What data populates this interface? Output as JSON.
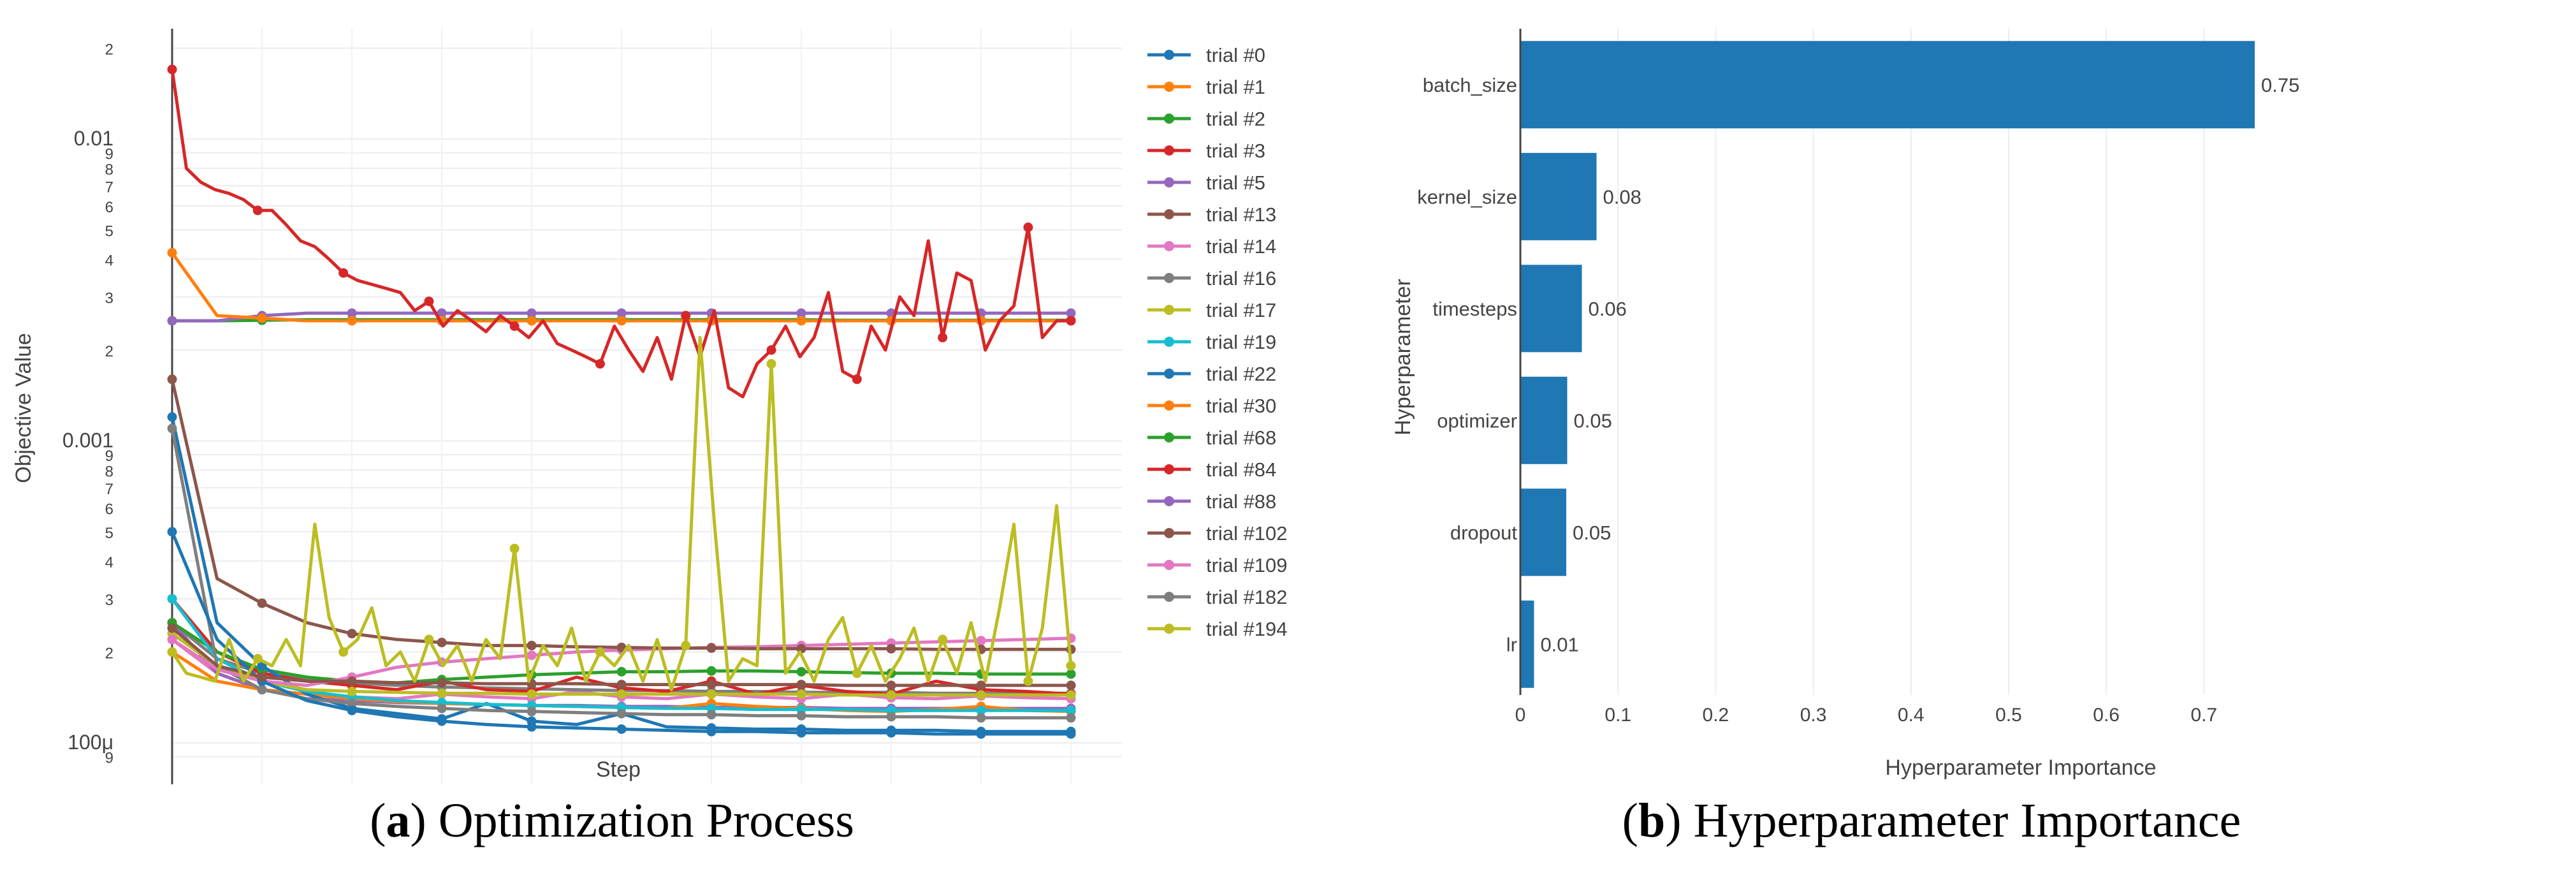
{
  "captions": {
    "a_letter": "a",
    "a_text": " Optimization Process",
    "b_letter": "b",
    "b_text": " Hyperparameter Importance"
  },
  "chart_data": [
    {
      "type": "line",
      "panel": "a",
      "title": "",
      "xlabel": "Step",
      "ylabel": "Objective Value",
      "yscale": "log",
      "ylim": [
        9e-05,
        0.022
      ],
      "xlim": [
        0,
        100
      ],
      "y_tick_labels": [
        {
          "v": 0.02,
          "t": "2"
        },
        {
          "v": 0.01,
          "t": "0.01"
        },
        {
          "v": 0.009,
          "t": "9"
        },
        {
          "v": 0.008,
          "t": "8"
        },
        {
          "v": 0.007,
          "t": "7"
        },
        {
          "v": 0.006,
          "t": "6"
        },
        {
          "v": 0.005,
          "t": "5"
        },
        {
          "v": 0.004,
          "t": "4"
        },
        {
          "v": 0.003,
          "t": "3"
        },
        {
          "v": 0.002,
          "t": "2"
        },
        {
          "v": 0.001,
          "t": "0.001"
        },
        {
          "v": 0.0009,
          "t": "9"
        },
        {
          "v": 0.0008,
          "t": "8"
        },
        {
          "v": 0.0007,
          "t": "7"
        },
        {
          "v": 0.0006,
          "t": "6"
        },
        {
          "v": 0.0005,
          "t": "5"
        },
        {
          "v": 0.0004,
          "t": "4"
        },
        {
          "v": 0.0003,
          "t": "3"
        },
        {
          "v": 0.0002,
          "t": "2"
        },
        {
          "v": 0.0001,
          "t": "100μ"
        },
        {
          "v": 9e-05,
          "t": "9"
        }
      ],
      "series": [
        {
          "name": "trial #0",
          "color": "#1f77b4",
          "values": [
            0.0005,
            0.00022,
            0.00016,
            0.000138,
            0.000128,
            0.000122,
            0.000118,
            0.000115,
            0.000113,
            0.000112,
            0.000111,
            0.00011,
            0.000109,
            0.000109,
            0.000108,
            0.000108,
            0.000108,
            0.000107,
            0.000107,
            0.000107,
            0.000107
          ]
        },
        {
          "name": "trial #1",
          "color": "#ff7f0e",
          "values": [
            0.0042,
            0.0026,
            0.00255,
            0.0025,
            0.0025,
            0.0025,
            0.0025,
            0.0025,
            0.0025,
            0.0025,
            0.0025,
            0.0025,
            0.0025,
            0.0025,
            0.0025,
            0.0025,
            0.0025,
            0.0025,
            0.0025,
            0.0025,
            0.0025
          ]
        },
        {
          "name": "trial #2",
          "color": "#2ca02c",
          "values": [
            0.0025,
            0.0025,
            0.00251,
            0.00252,
            0.00252,
            0.00252,
            0.00252,
            0.00252,
            0.00252,
            0.00252,
            0.00252,
            0.00252,
            0.00252,
            0.00252,
            0.00252,
            0.00251,
            0.00251,
            0.00251,
            0.00251,
            0.00251,
            0.00251
          ]
        },
        {
          "name": "trial #3",
          "color": "#d62728",
          "values": [
            0.017,
            0.008,
            0.0072,
            0.0068,
            0.0066,
            0.0063,
            0.0058,
            0.0058,
            0.0052,
            0.0046,
            0.0044,
            0.004,
            0.0036,
            0.0034,
            0.0033,
            0.0032,
            0.0031,
            0.0027,
            0.0029,
            0.0024,
            0.0027,
            0.0025,
            0.0023,
            0.0026,
            0.0024,
            0.0022,
            0.0025,
            0.0021,
            0.002,
            0.0019,
            0.0018,
            0.0024,
            0.002,
            0.0017,
            0.0022,
            0.0016,
            0.0026,
            0.0019,
            0.0027,
            0.0015,
            0.0014,
            0.0018,
            0.002,
            0.0024,
            0.0019,
            0.0022,
            0.0031,
            0.0017,
            0.0016,
            0.0024,
            0.002,
            0.003,
            0.0026,
            0.0046,
            0.0022,
            0.0036,
            0.0034,
            0.002,
            0.0025,
            0.0028,
            0.0051,
            0.0022,
            0.0025,
            0.0025
          ]
        },
        {
          "name": "trial #5",
          "color": "#9467bd",
          "values": [
            0.0025,
            0.0025,
            0.0026,
            0.00265,
            0.00265,
            0.00265,
            0.00265,
            0.00265,
            0.00265,
            0.00265,
            0.00265,
            0.00265,
            0.00265,
            0.00265,
            0.00265,
            0.00265,
            0.00265,
            0.00265,
            0.00265,
            0.00265,
            0.00265
          ]
        },
        {
          "name": "trial #13",
          "color": "#8c564b",
          "values": [
            0.0016,
            0.00035,
            0.00029,
            0.00025,
            0.00023,
            0.00022,
            0.000215,
            0.00021,
            0.00021,
            0.000208,
            0.000207,
            0.000206,
            0.000206,
            0.000205,
            0.000205,
            0.000205,
            0.000205,
            0.000204,
            0.000204,
            0.000204,
            0.000204
          ]
        },
        {
          "name": "trial #14",
          "color": "#e377c2",
          "values": [
            0.00022,
            0.000175,
            0.00016,
            0.000155,
            0.000165,
            0.000178,
            0.000185,
            0.00019,
            0.000195,
            0.0002,
            0.000203,
            0.000205,
            0.000207,
            0.000208,
            0.00021,
            0.000212,
            0.000214,
            0.000216,
            0.000218,
            0.00022,
            0.000222
          ]
        },
        {
          "name": "trial #16",
          "color": "#7f7f7f",
          "values": [
            0.0011,
            0.00018,
            0.00015,
            0.00014,
            0.000135,
            0.000132,
            0.00013,
            0.000128,
            0.000127,
            0.000126,
            0.000125,
            0.000124,
            0.000124,
            0.000123,
            0.000123,
            0.000122,
            0.000122,
            0.000122,
            0.000121,
            0.000121,
            0.000121
          ]
        },
        {
          "name": "trial #17",
          "color": "#bcbd22",
          "values": [
            0.00023,
            0.00018,
            0.00016,
            0.00015,
            0.000148,
            0.000147,
            0.000146,
            0.000146,
            0.000145,
            0.000145,
            0.000145,
            0.000145,
            0.000145,
            0.000145,
            0.000145,
            0.000144,
            0.000144,
            0.000144,
            0.000144,
            0.000144,
            0.000144
          ]
        },
        {
          "name": "trial #19",
          "color": "#17becf",
          "values": [
            0.0003,
            0.00019,
            0.00016,
            0.000148,
            0.000142,
            0.000138,
            0.000136,
            0.000134,
            0.000133,
            0.000132,
            0.000131,
            0.00013,
            0.00013,
            0.000129,
            0.000129,
            0.000129,
            0.000128,
            0.000128,
            0.000128,
            0.000128,
            0.000128
          ]
        },
        {
          "name": "trial #22",
          "color": "#1f77b4",
          "values": [
            0.0012,
            0.00025,
            0.00018,
            0.000145,
            0.00013,
            0.000125,
            0.00012,
            0.000135,
            0.000118,
            0.000115,
            0.000125,
            0.000113,
            0.000112,
            0.000111,
            0.000111,
            0.00011,
            0.00011,
            0.00011,
            0.000109,
            0.000109,
            0.000109
          ]
        },
        {
          "name": "trial #30",
          "color": "#ff7f0e",
          "values": [
            0.0002,
            0.00016,
            0.00015,
            0.000145,
            0.00014,
            0.000137,
            0.000135,
            0.000134,
            0.000133,
            0.000132,
            0.000131,
            0.00013,
            0.000135,
            0.000132,
            0.00013,
            0.000128,
            0.000127,
            0.000129,
            0.000132,
            0.000128,
            0.000127
          ]
        },
        {
          "name": "trial #68",
          "color": "#2ca02c",
          "values": [
            0.00025,
            0.0002,
            0.000175,
            0.000165,
            0.00016,
            0.000158,
            0.000162,
            0.000165,
            0.000168,
            0.00017,
            0.000172,
            0.000172,
            0.000173,
            0.000173,
            0.000172,
            0.000171,
            0.00017,
            0.00017,
            0.000169,
            0.000169,
            0.000169
          ]
        },
        {
          "name": "trial #84",
          "color": "#d62728",
          "values": [
            0.0003,
            0.0002,
            0.00017,
            0.00016,
            0.000155,
            0.00015,
            0.00016,
            0.00015,
            0.000148,
            0.000165,
            0.000152,
            0.000148,
            0.00016,
            0.000145,
            0.000155,
            0.000148,
            0.000145,
            0.00016,
            0.00015,
            0.000148,
            0.000145
          ]
        },
        {
          "name": "trial #88",
          "color": "#9467bd",
          "values": [
            0.00025,
            0.00017,
            0.00015,
            0.00014,
            0.000138,
            0.000136,
            0.000135,
            0.000134,
            0.000133,
            0.000133,
            0.000132,
            0.000132,
            0.000131,
            0.000131,
            0.000131,
            0.00013,
            0.00013,
            0.00013,
            0.00013,
            0.00013,
            0.00013
          ]
        },
        {
          "name": "trial #102",
          "color": "#8c564b",
          "values": [
            0.00024,
            0.00018,
            0.000165,
            0.00016,
            0.00016,
            0.000158,
            0.000158,
            0.000157,
            0.000157,
            0.000157,
            0.000156,
            0.000156,
            0.000156,
            0.000156,
            0.000156,
            0.000155,
            0.000155,
            0.000155,
            0.000155,
            0.000155,
            0.000155
          ]
        },
        {
          "name": "trial #109",
          "color": "#e377c2",
          "values": [
            0.00022,
            0.00017,
            0.00015,
            0.000145,
            0.000142,
            0.00014,
            0.000145,
            0.000142,
            0.00014,
            0.000148,
            0.000142,
            0.00014,
            0.000145,
            0.000142,
            0.00014,
            0.000145,
            0.000141,
            0.00014,
            0.000143,
            0.000141,
            0.00014
          ]
        },
        {
          "name": "trial #182",
          "color": "#7f7f7f",
          "values": [
            0.00025,
            0.00019,
            0.00017,
            0.000162,
            0.000158,
            0.000155,
            0.000153,
            0.000152,
            0.000151,
            0.00015,
            0.000149,
            0.000149,
            0.000148,
            0.000148,
            0.000147,
            0.000147,
            0.000147,
            0.000146,
            0.000146,
            0.000146,
            0.000146
          ]
        },
        {
          "name": "trial #194",
          "color": "#bcbd22",
          "values": [
            0.0002,
            0.00017,
            0.000165,
            0.00016,
            0.00022,
            0.00016,
            0.00019,
            0.00018,
            0.00022,
            0.00018,
            0.00053,
            0.00026,
            0.0002,
            0.00022,
            0.00028,
            0.00018,
            0.0002,
            0.00016,
            0.00022,
            0.00018,
            0.00021,
            0.00016,
            0.00022,
            0.00019,
            0.00044,
            0.00016,
            0.00021,
            0.00018,
            0.00024,
            0.00016,
            0.0002,
            0.00018,
            0.00021,
            0.00016,
            0.00022,
            0.00015,
            0.00021,
            0.0022,
            0.00054,
            0.00016,
            0.00019,
            0.00018,
            0.0018,
            0.00017,
            0.0002,
            0.00016,
            0.00022,
            0.00026,
            0.00017,
            0.00021,
            0.00016,
            0.00019,
            0.00024,
            0.00016,
            0.00022,
            0.00017,
            0.00025,
            0.00016,
            0.00028,
            0.00053,
            0.00016,
            0.00024,
            0.00061,
            0.00018
          ]
        }
      ]
    },
    {
      "type": "bar",
      "panel": "b",
      "orientation": "horizontal",
      "title": "",
      "xlabel": "Hyperparameter Importance",
      "ylabel": "Hyperparameter",
      "xlim": [
        0,
        0.8
      ],
      "x_ticks": [
        "0",
        "0.1",
        "0.2",
        "0.3",
        "0.4",
        "0.5",
        "0.6",
        "0.7"
      ],
      "categories": [
        "batch_size",
        "kernel_size",
        "timesteps",
        "optimizer",
        "dropout",
        "lr"
      ],
      "values": [
        0.75,
        0.08,
        0.06,
        0.05,
        0.05,
        0.01
      ],
      "bar_lengths": [
        0.752,
        0.078,
        0.063,
        0.048,
        0.047,
        0.014
      ],
      "value_labels": [
        "0.75",
        "0.08",
        "0.06",
        "0.05",
        "0.05",
        "0.01"
      ],
      "bar_color": "#1f77b4"
    }
  ]
}
